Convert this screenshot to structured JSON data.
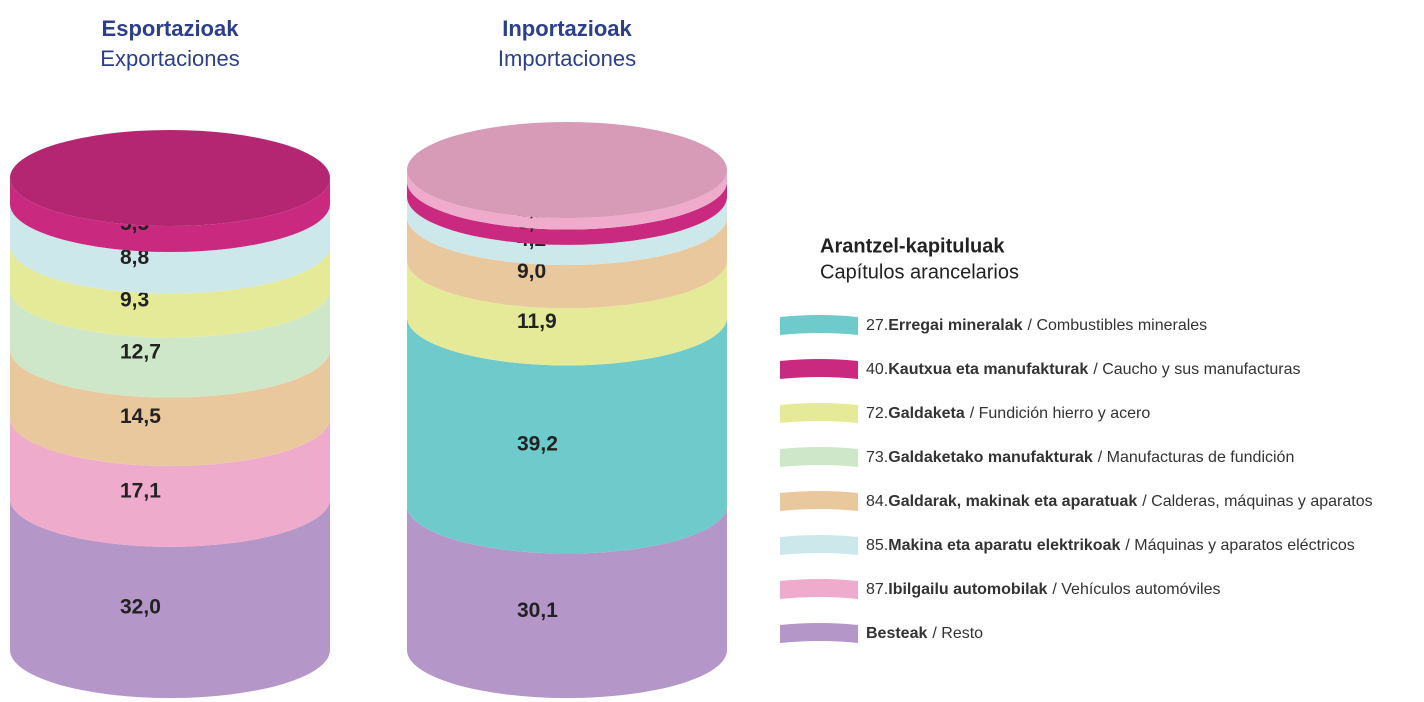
{
  "chart_data": {
    "type": "stacked-cylinder",
    "categories": [
      "Esportazioak",
      "Inportazioak"
    ],
    "category_subtitles": [
      "Exportaciones",
      "Importaciones"
    ],
    "legend_title": "Arantzel-kapituluak",
    "legend_subtitle": "Capítulos arancelarios",
    "series": [
      {
        "code": "27.",
        "name": "Erregai mineralak",
        "translation": "/ Combustibles minerales",
        "color": "#6fcbcb",
        "values": [
          null,
          39.2
        ],
        "value_labels": [
          null,
          "39,2"
        ]
      },
      {
        "code": "40.",
        "name": "Kautxua eta manufakturak",
        "translation": "/ Caucho y sus manufacturas",
        "color": "#c92a7f",
        "values": [
          5.5,
          3.2
        ],
        "value_labels": [
          "5,5",
          "3,2"
        ]
      },
      {
        "code": "72.",
        "name": "Galdaketa",
        "translation": "/ Fundición hierro y acero",
        "color": "#e5ea98",
        "values": [
          9.3,
          11.9
        ],
        "value_labels": [
          "9,3",
          "11,9"
        ]
      },
      {
        "code": "73.",
        "name": "Galdaketako manufakturak",
        "translation": "/ Manufacturas de fundición",
        "color": "#cfe7c9",
        "values": [
          12.7,
          null
        ],
        "value_labels": [
          "12,7",
          null
        ]
      },
      {
        "code": "84.",
        "name": "Galdarak, makinak eta aparatuak",
        "translation": "/ Calderas, máquinas y aparatos",
        "color": "#e9c89e",
        "values": [
          14.5,
          9.0
        ],
        "value_labels": [
          "14,5",
          "9,0"
        ]
      },
      {
        "code": "85.",
        "name": "Makina eta aparatu elektrikoak",
        "translation": "/ Máquinas y aparatos eléctricos",
        "color": "#cde8eb",
        "values": [
          8.8,
          4.2
        ],
        "value_labels": [
          "8,8",
          "4,2"
        ]
      },
      {
        "code": "87.",
        "name": "Ibilgailu automobilak",
        "translation": "/ Vehículos automóviles",
        "color": "#efabcb",
        "values": [
          17.1,
          2.4
        ],
        "value_labels": [
          "17,1",
          "2,4"
        ]
      },
      {
        "name": "Besteak",
        "translation": "/ Resto",
        "color": "#b496c9",
        "values": [
          32.0,
          30.1
        ],
        "value_labels": [
          "32,0",
          "30,1"
        ]
      }
    ]
  }
}
